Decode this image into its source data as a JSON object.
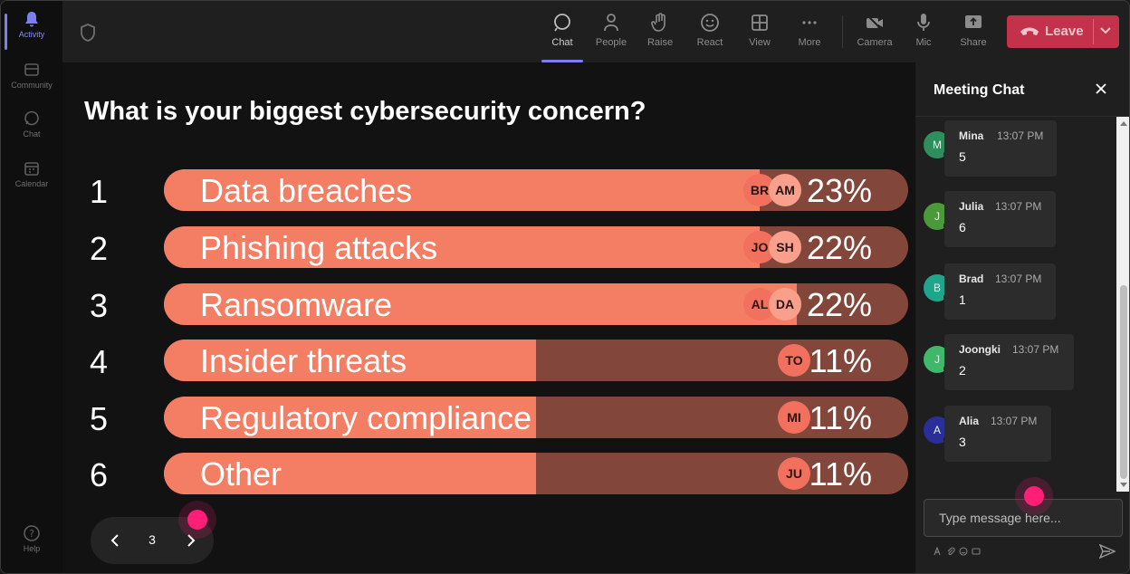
{
  "rail": {
    "items": [
      {
        "label": "Activity",
        "active": true
      },
      {
        "label": "Community"
      },
      {
        "label": "Chat"
      },
      {
        "label": "Calendar"
      },
      {
        "label": "Help"
      }
    ]
  },
  "toolbar": {
    "chat": "Chat",
    "people": "People",
    "raise": "Raise",
    "react": "React",
    "view": "View",
    "more": "More",
    "camera": "Camera",
    "mic": "Mic",
    "share": "Share",
    "leave": "Leave"
  },
  "poll": {
    "title": "What is your biggest cybersecurity concern?",
    "options": [
      {
        "num": "1",
        "label": "Data breaches",
        "percent": "23%",
        "fill": 0.8,
        "avatars": [
          "BR",
          "AM"
        ]
      },
      {
        "num": "2",
        "label": "Phishing attacks",
        "percent": "22%",
        "fill": 0.8,
        "avatars": [
          "JO",
          "SH"
        ]
      },
      {
        "num": "3",
        "label": "Ransomware",
        "percent": "22%",
        "fill": 0.85,
        "avatars": [
          "AL",
          "DA"
        ]
      },
      {
        "num": "4",
        "label": "Insider threats",
        "percent": "11%",
        "fill": 0.5,
        "avatars": [
          "TO"
        ]
      },
      {
        "num": "5",
        "label": "Regulatory compliance",
        "percent": "11%",
        "fill": 0.5,
        "avatars": [
          "MI"
        ]
      },
      {
        "num": "6",
        "label": "Other",
        "percent": "11%",
        "fill": 0.5,
        "avatars": [
          "JU"
        ]
      }
    ],
    "page": "3"
  },
  "chat": {
    "title": "Meeting Chat",
    "messages": [
      {
        "initial": "M",
        "name": "Mina",
        "time": "13:07 PM",
        "text": "5",
        "color": "#2e8f5e"
      },
      {
        "initial": "J",
        "name": "Julia",
        "time": "13:07 PM",
        "text": "6",
        "color": "#4a9a3a"
      },
      {
        "initial": "B",
        "name": "Brad",
        "time": "13:07 PM",
        "text": "1",
        "color": "#1fa58a"
      },
      {
        "initial": "J",
        "name": "Joongki",
        "time": "13:07 PM",
        "text": "2",
        "color": "#3fb86a"
      },
      {
        "initial": "A",
        "name": "Alia",
        "time": "13:07 PM",
        "text": "3",
        "color": "#2a2e9a"
      }
    ],
    "input_placeholder": "Type message here..."
  },
  "colors": {
    "accent": "#7b7ff0",
    "bar_fill": "#f47e63",
    "bar_track": "#82473a",
    "leave": "#c4314b",
    "cursor": "#ff1e78"
  }
}
